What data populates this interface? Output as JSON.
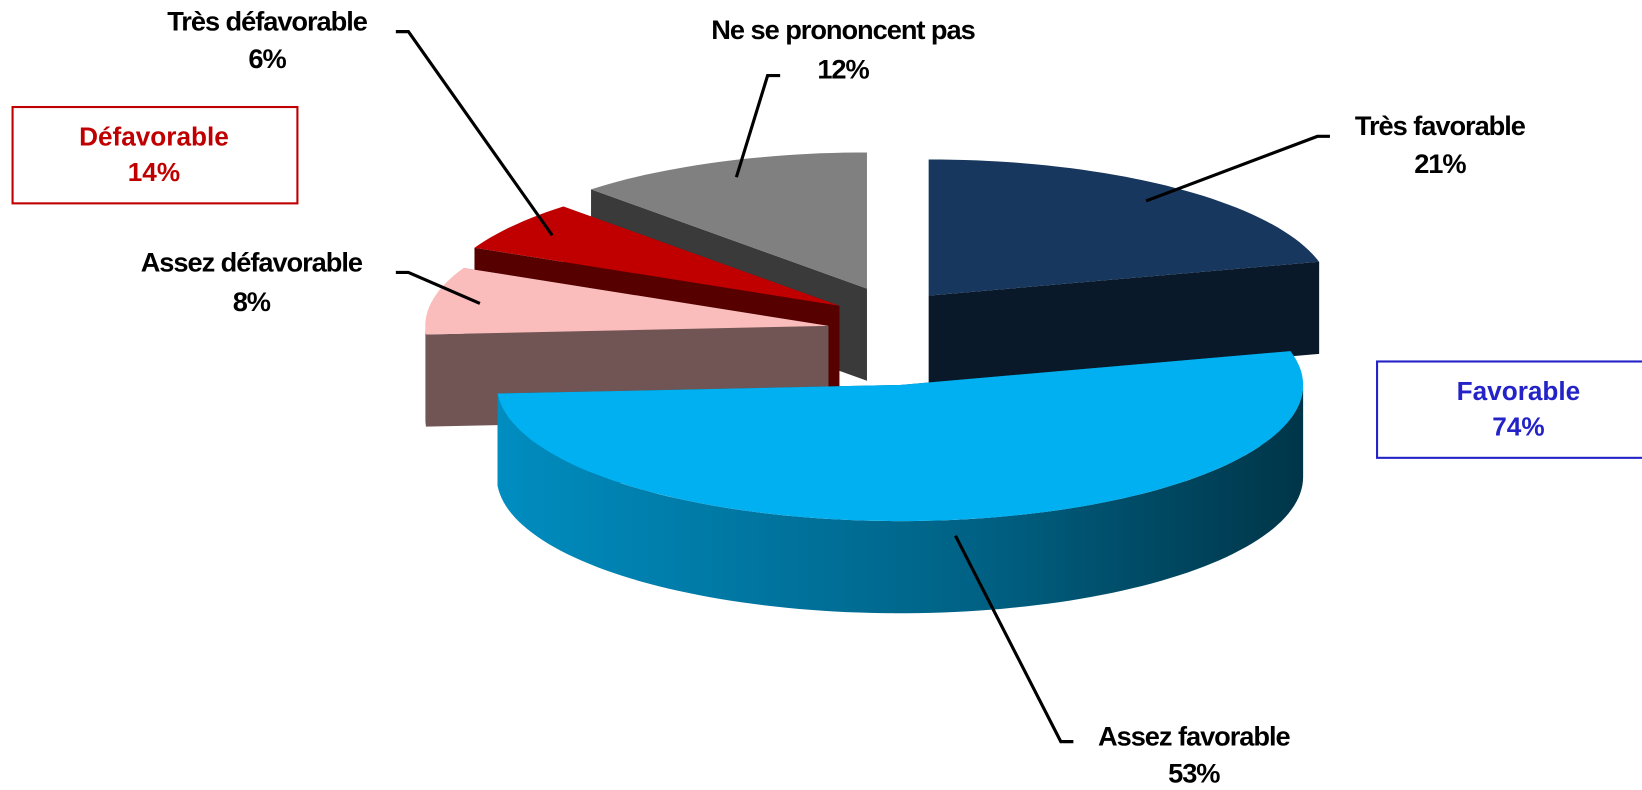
{
  "chart_data": {
    "type": "pie3d",
    "categories": [
      "Très favorable",
      "Assez favorable",
      "Assez défavorable",
      "Très défavorable",
      "Ne se prononcent pas"
    ],
    "values": [
      21,
      53,
      8,
      6,
      12
    ],
    "value_labels": [
      "21%",
      "53%",
      "8%",
      "6%",
      "12%"
    ],
    "colors": [
      "#17375e",
      "#00b0f0",
      "#fbbcbc",
      "#c00000",
      "#808080"
    ],
    "annotations": [
      {
        "text": "Défavorable",
        "value": 14,
        "value_label": "14%",
        "color": "#c00000"
      },
      {
        "text": "Favorable",
        "value": 74,
        "value_label": "74%",
        "color": "#2323c8"
      }
    ]
  }
}
